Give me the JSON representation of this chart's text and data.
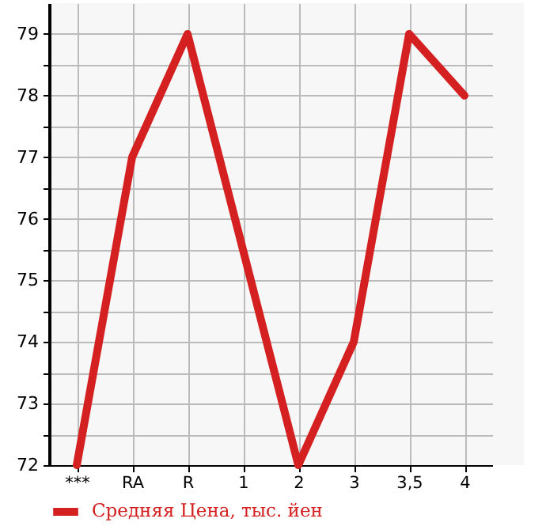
{
  "chart_data": {
    "type": "line",
    "categories": [
      "***",
      "RA",
      "R",
      "1",
      "2",
      "3",
      "3,5",
      "4"
    ],
    "series": [
      {
        "name": "Средняя Цена, тыс. йен",
        "color": "#d42020",
        "values": [
          72,
          77,
          79,
          75.5,
          72,
          74,
          79,
          78
        ]
      }
    ],
    "ylim": [
      72,
      79.5
    ],
    "yticks": [
      72,
      {
        "value": 72.5,
        "label": null
      },
      73,
      {
        "value": 73.5,
        "label": null
      },
      74,
      {
        "value": 74.5,
        "label": null
      },
      75,
      {
        "value": 75.5,
        "label": null
      },
      76,
      {
        "value": 76.5,
        "label": null
      },
      77,
      {
        "value": 77.5,
        "label": null
      },
      78,
      {
        "value": 78.5,
        "label": null
      },
      79
    ],
    "grid": true,
    "legend": "bottom left",
    "marker": "none",
    "line_style": "solid"
  }
}
